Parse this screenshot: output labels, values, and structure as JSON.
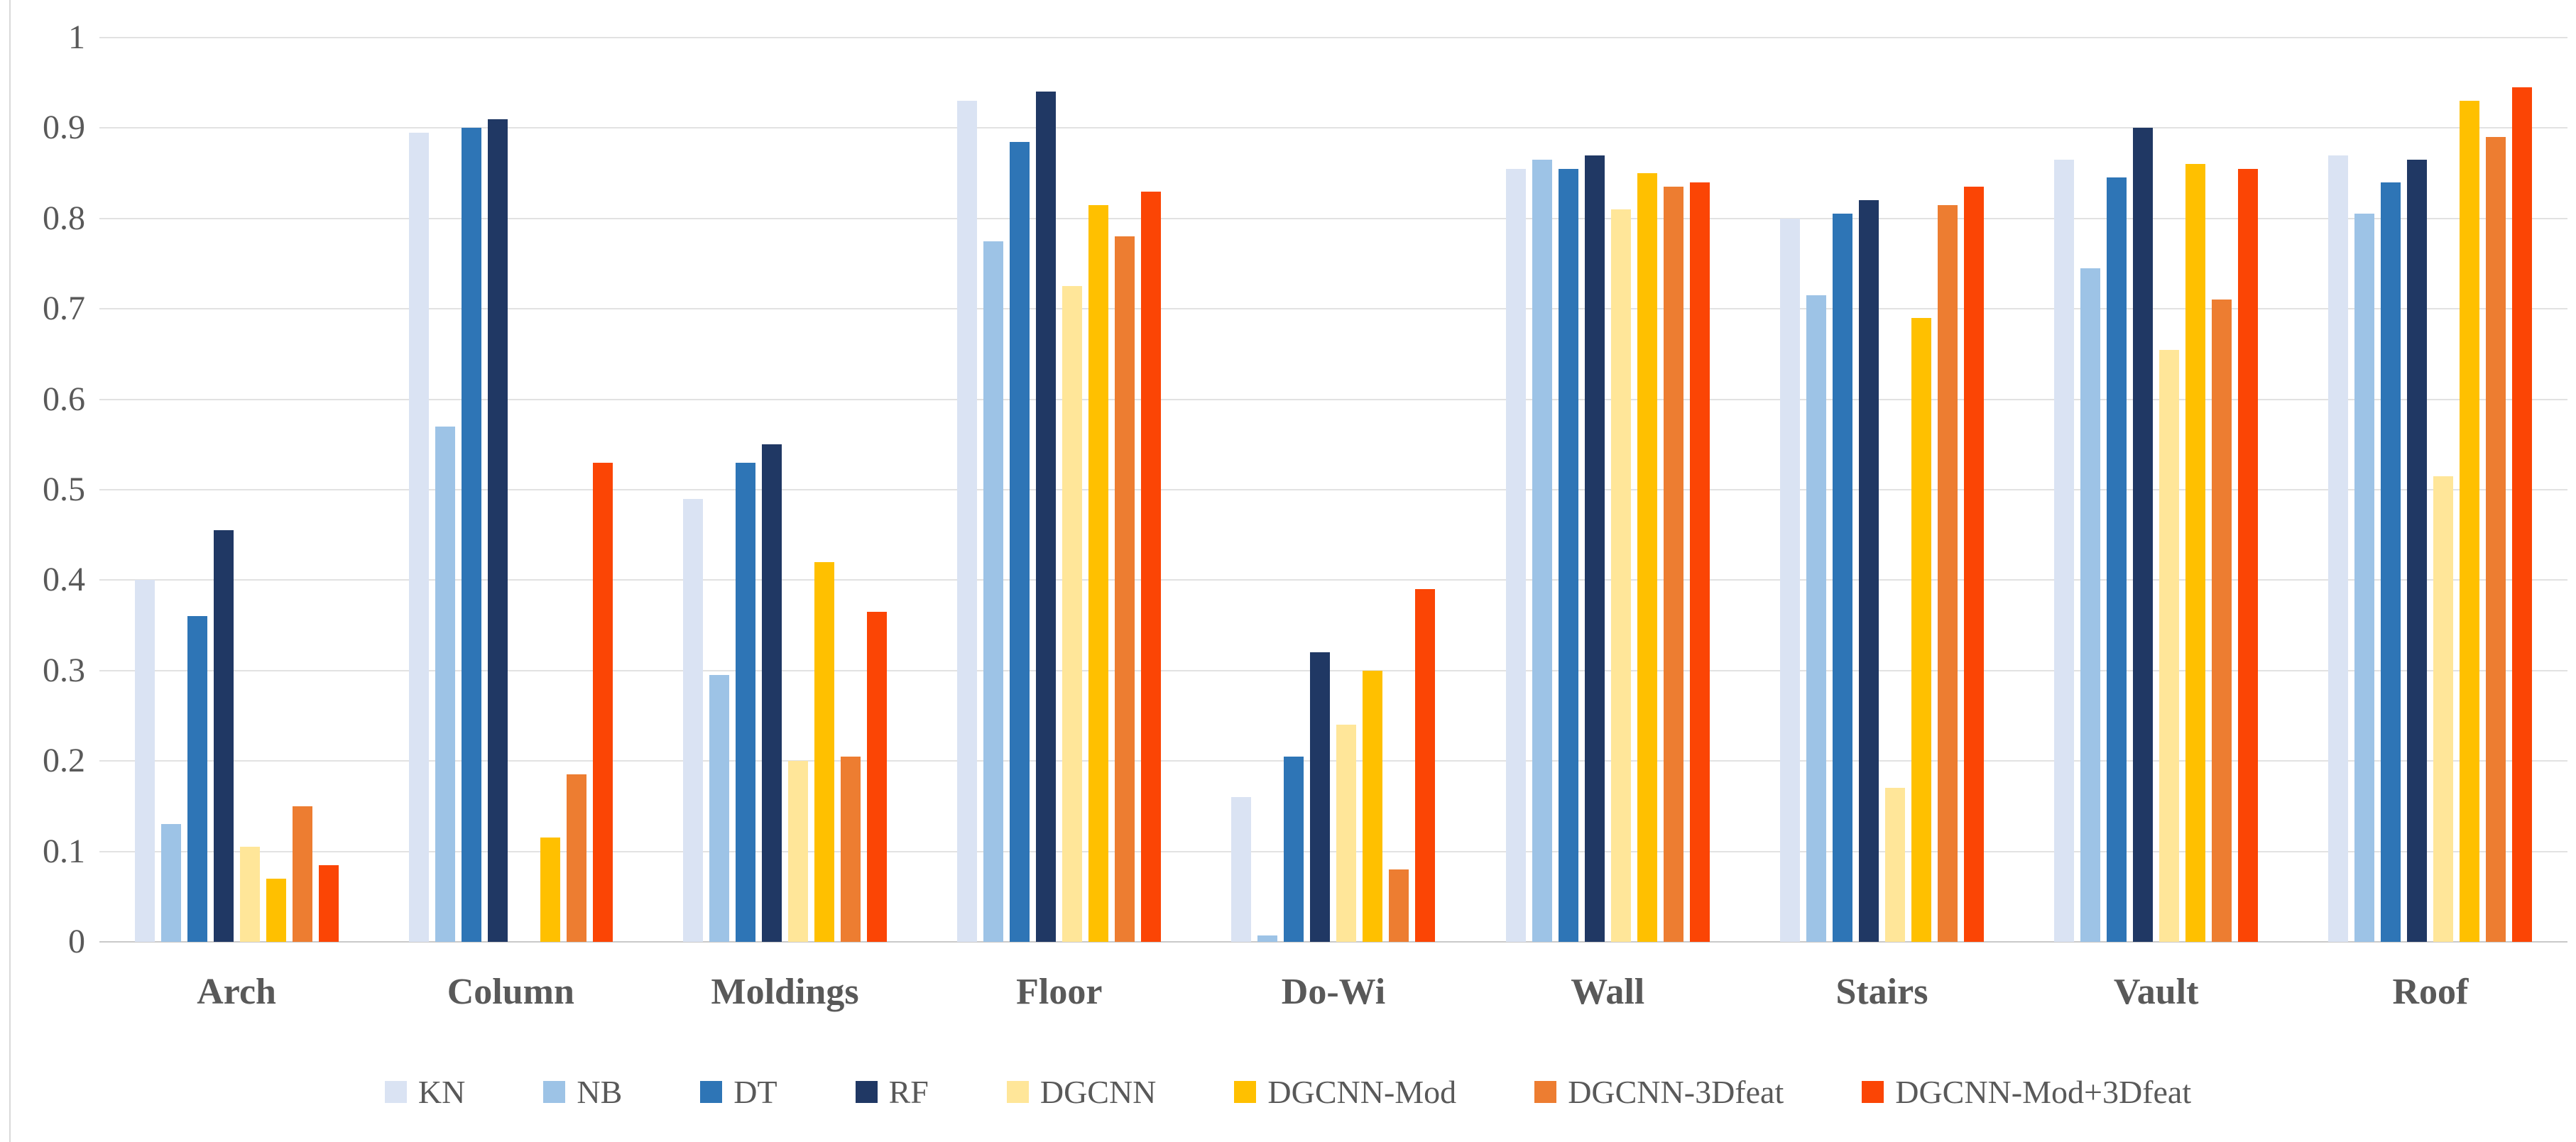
{
  "chart_data": {
    "type": "bar",
    "title": "",
    "xlabel": "",
    "ylabel": "",
    "ylim": [
      0,
      1
    ],
    "yticks": [
      0,
      0.1,
      0.2,
      0.3,
      0.4,
      0.5,
      0.6,
      0.7,
      0.8,
      0.9,
      1
    ],
    "ytick_labels": [
      "0",
      "0.1",
      "0.2",
      "0.3",
      "0.4",
      "0.5",
      "0.6",
      "0.7",
      "0.8",
      "0.9",
      "1"
    ],
    "grid": "horizontal",
    "legend_position": "bottom",
    "categories": [
      "Arch",
      "Column",
      "Moldings",
      "Floor",
      "Do-Wi",
      "Wall",
      "Stairs",
      "Vault",
      "Roof"
    ],
    "series": [
      {
        "name": "KN",
        "color": "#dae3f3",
        "values": [
          0.4,
          0.895,
          0.49,
          0.93,
          0.16,
          0.855,
          0.8,
          0.865,
          0.87
        ]
      },
      {
        "name": "NB",
        "color": "#9dc3e6",
        "values": [
          0.13,
          0.57,
          0.295,
          0.775,
          0.007,
          0.865,
          0.715,
          0.745,
          0.805
        ]
      },
      {
        "name": "DT",
        "color": "#2e75b6",
        "values": [
          0.36,
          0.9,
          0.53,
          0.885,
          0.205,
          0.855,
          0.805,
          0.845,
          0.84
        ]
      },
      {
        "name": "RF",
        "color": "#203864",
        "values": [
          0.455,
          0.91,
          0.55,
          0.94,
          0.32,
          0.87,
          0.82,
          0.9,
          0.865
        ]
      },
      {
        "name": "DGCNN",
        "color": "#ffe699",
        "values": [
          0.105,
          0.0,
          0.2,
          0.725,
          0.24,
          0.81,
          0.17,
          0.655,
          0.515
        ]
      },
      {
        "name": "DGCNN-Mod",
        "color": "#ffc000",
        "values": [
          0.07,
          0.115,
          0.42,
          0.815,
          0.3,
          0.85,
          0.69,
          0.86,
          0.93
        ]
      },
      {
        "name": "DGCNN-3Dfeat",
        "color": "#ed7d31",
        "values": [
          0.15,
          0.185,
          0.205,
          0.78,
          0.08,
          0.835,
          0.815,
          0.71,
          0.89
        ]
      },
      {
        "name": "DGCNN-Mod+3Dfeat",
        "color": "#fb4505",
        "values": [
          0.085,
          0.53,
          0.365,
          0.83,
          0.39,
          0.84,
          0.835,
          0.855,
          0.945
        ]
      }
    ],
    "colors": {
      "axis_text": "#595959",
      "gridline": "#e2e2e2",
      "baseline": "#c9c9c9",
      "left_border": "#d9d9d9",
      "background": "#ffffff"
    }
  }
}
